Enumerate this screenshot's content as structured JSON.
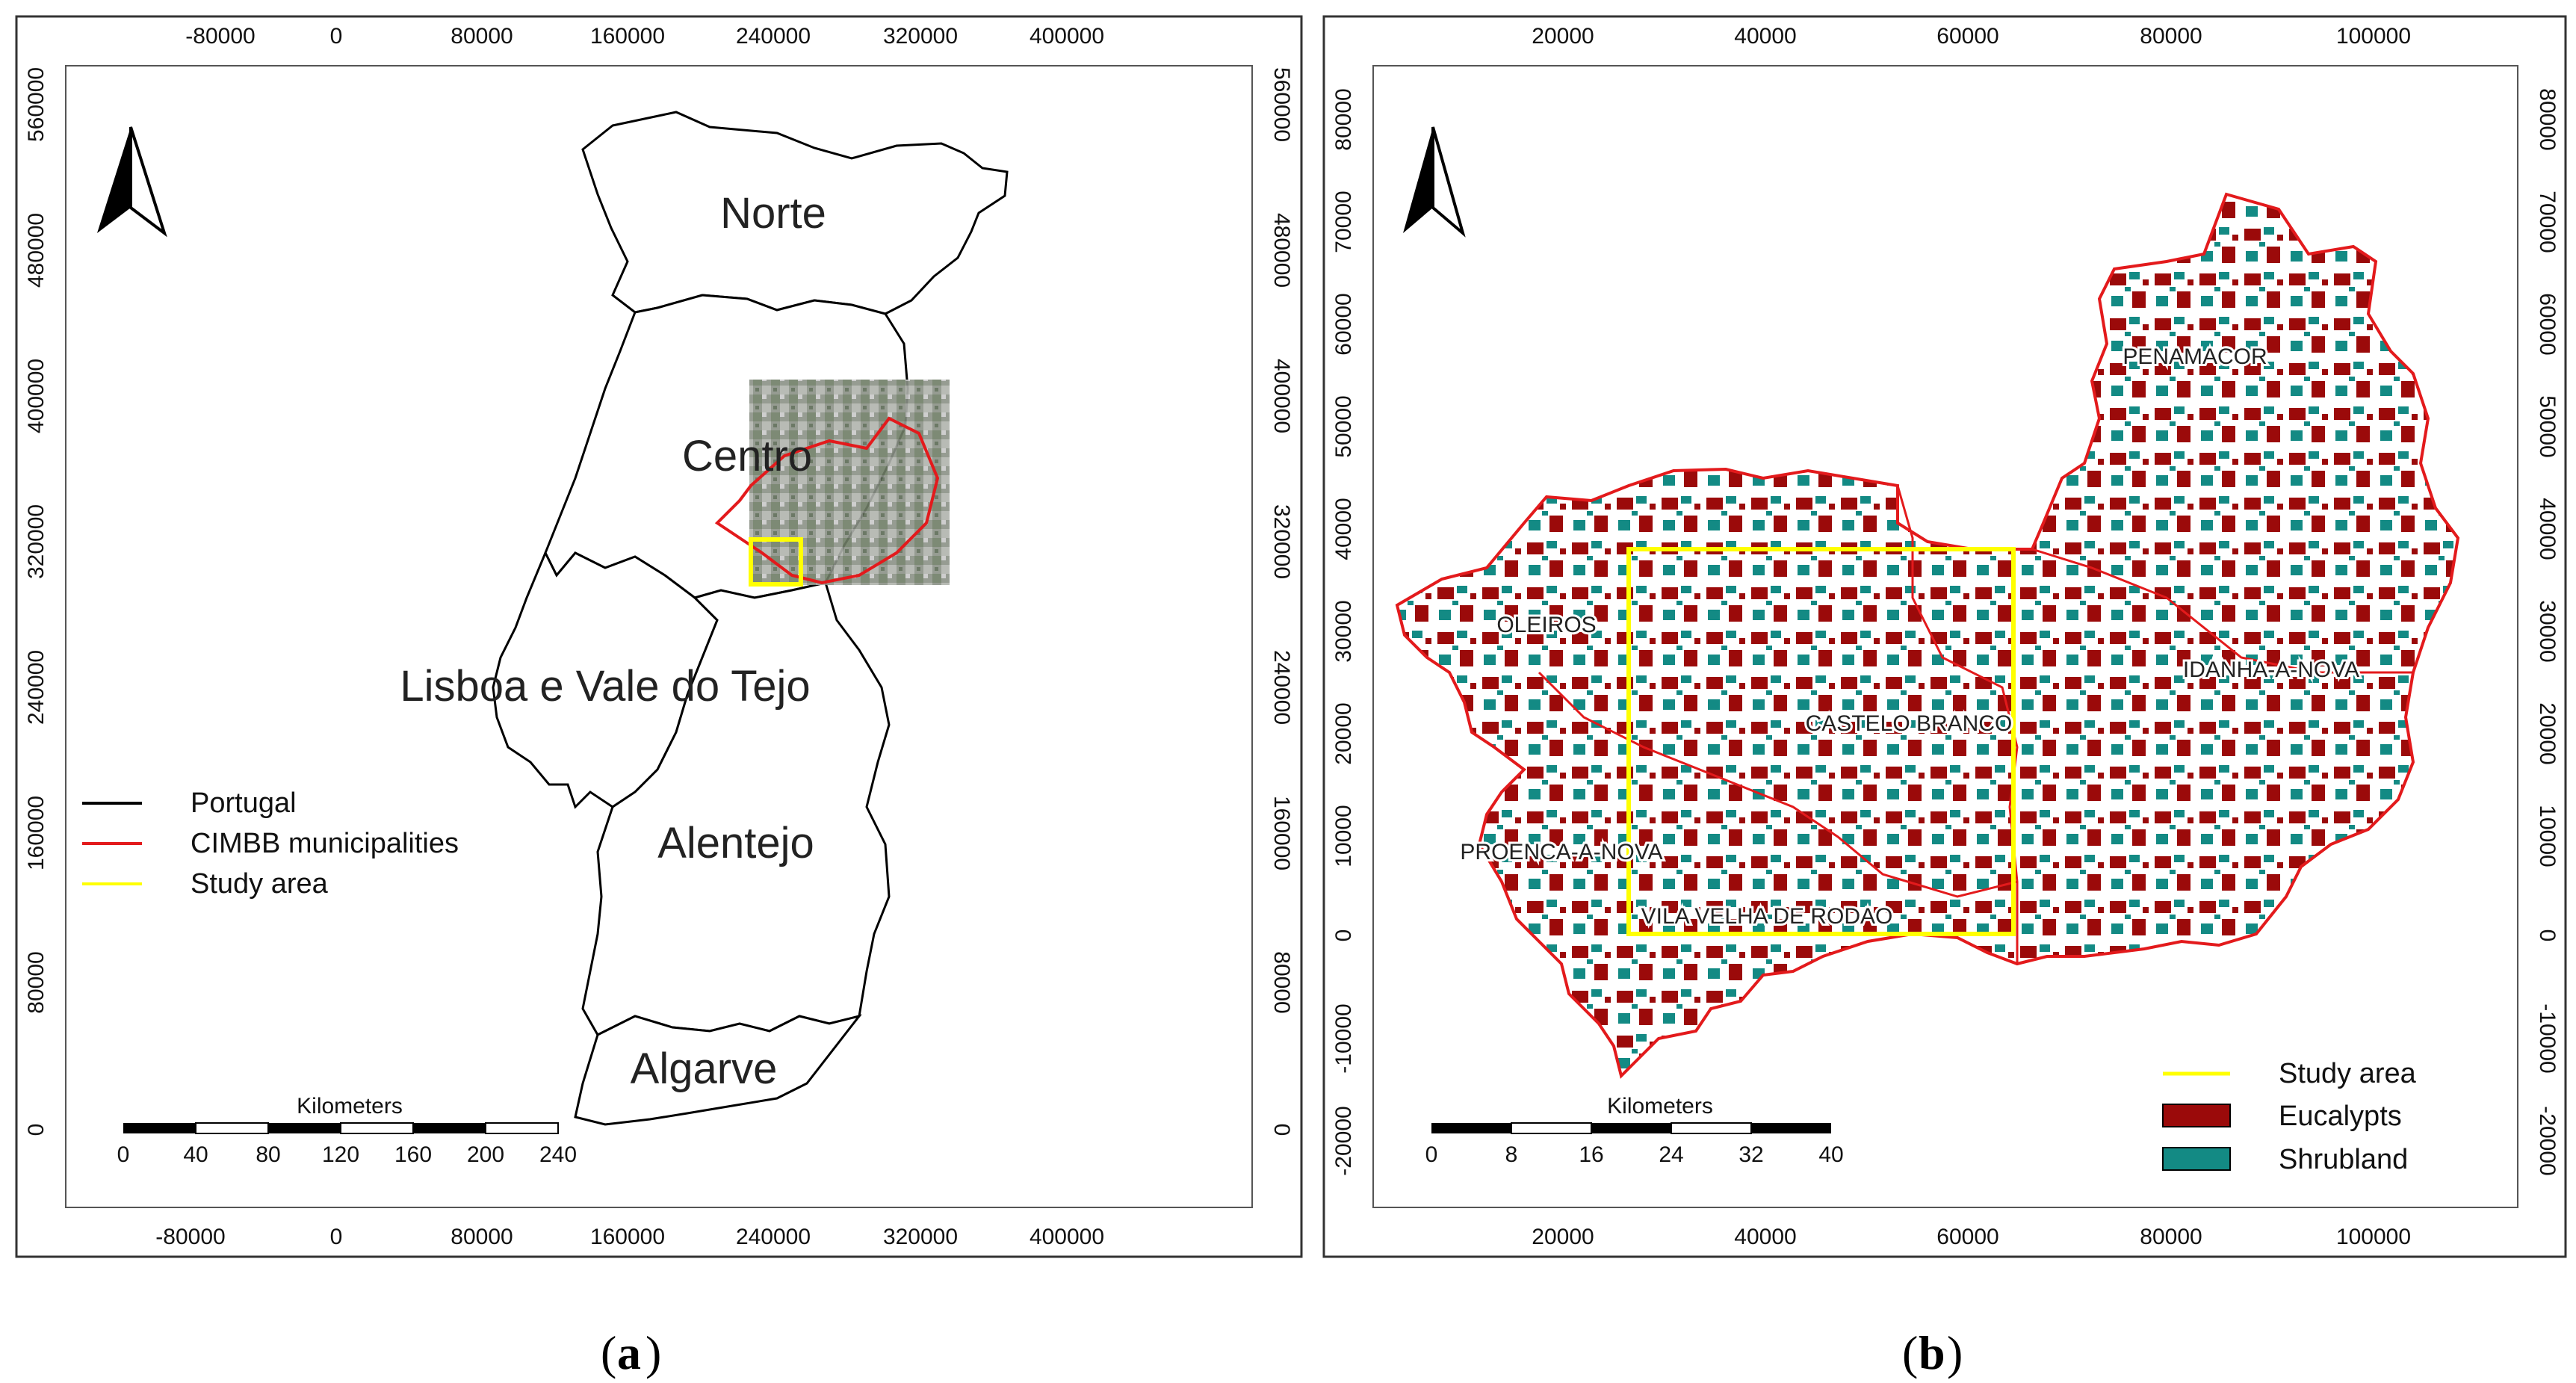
{
  "panel_a": {
    "caption_open": "(",
    "caption_letter": "a",
    "caption_close": ")",
    "x_ticks": [
      "-80000",
      "0",
      "80000",
      "160000",
      "240000",
      "320000",
      "400000"
    ],
    "y_ticks": [
      "560000",
      "480000",
      "400000",
      "320000",
      "240000",
      "160000",
      "80000",
      "0"
    ],
    "regions": [
      "Norte",
      "Centro",
      "Lisboa e Vale do Tejo",
      "Alentejo",
      "Algarve"
    ],
    "legend": [
      {
        "label": "Portugal",
        "color": "#000000"
      },
      {
        "label": "CIMBB municipalities",
        "color": "#e31a1c"
      },
      {
        "label": "Study area",
        "color": "#ffff00"
      }
    ],
    "scalebar": {
      "title": "Kilometers",
      "ticks": [
        "0",
        "40",
        "80",
        "120",
        "160",
        "200",
        "240"
      ]
    }
  },
  "panel_b": {
    "caption_open": "(",
    "caption_letter": "b",
    "caption_close": ")",
    "x_ticks": [
      "20000",
      "40000",
      "60000",
      "80000",
      "100000"
    ],
    "y_ticks": [
      "80000",
      "70000",
      "60000",
      "50000",
      "40000",
      "30000",
      "20000",
      "10000",
      "0",
      "-10000",
      "-20000"
    ],
    "municipalities": [
      "PENAMACOR",
      "OLEIROS",
      "IDANHA-A-NOVA",
      "CASTELO BRANCO",
      "PROENCA-A-NOVA",
      "VILA VELHA DE RODAO"
    ],
    "legend": [
      {
        "label": "Study area",
        "color": "#ffff00"
      },
      {
        "label": "Eucalypts",
        "color": "#9b0a0a"
      },
      {
        "label": "Shrubland",
        "color": "#138a84"
      }
    ],
    "scalebar": {
      "title": "Kilometers",
      "ticks": [
        "0",
        "8",
        "16",
        "24",
        "32",
        "40"
      ]
    }
  }
}
